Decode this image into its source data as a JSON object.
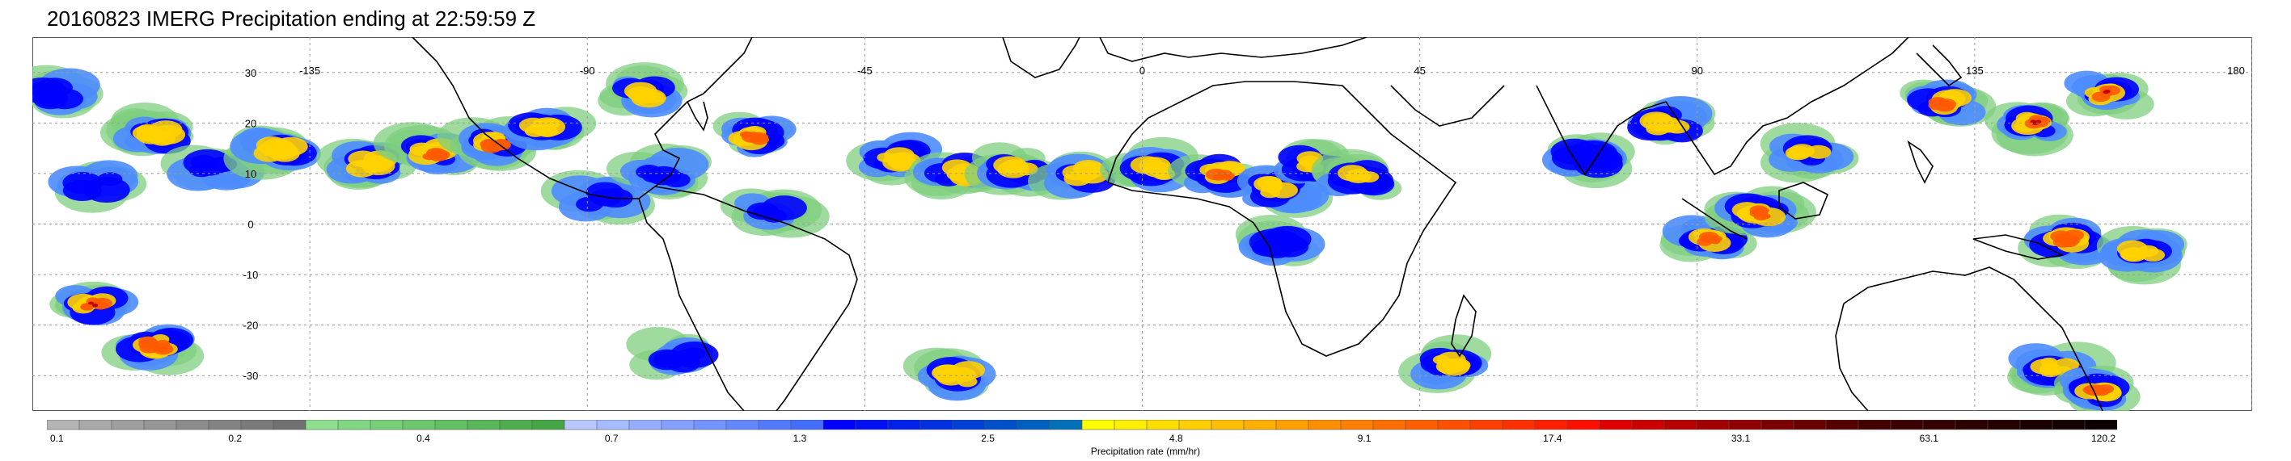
{
  "title": "20160823 IMERG Precipitation ending at 22:59:59 Z",
  "map": {
    "lat_labels": [
      "30",
      "20",
      "10",
      "0",
      "-10",
      "-20",
      "-30"
    ],
    "lon_labels": [
      "-135",
      "-90",
      "-45",
      "0",
      "45",
      "90",
      "135",
      "180"
    ],
    "lat_values": [
      30,
      20,
      10,
      0,
      -10,
      -20,
      -30
    ],
    "lon_values": [
      -135,
      -90,
      -45,
      0,
      45,
      90,
      135,
      180
    ],
    "lat_range": [
      -37,
      37
    ],
    "lon_range": [
      -180,
      180
    ],
    "grid": true,
    "land_outline_color": "#000000",
    "rain_systems": [
      {
        "lon": -176,
        "lat": 26,
        "intensity": 2
      },
      {
        "lon": -170,
        "lat": 8,
        "intensity": 2
      },
      {
        "lon": -160,
        "lat": 18,
        "intensity": 3
      },
      {
        "lon": -150,
        "lat": 11,
        "intensity": 2
      },
      {
        "lon": -140,
        "lat": 15,
        "intensity": 3
      },
      {
        "lon": -125,
        "lat": 12,
        "intensity": 3
      },
      {
        "lon": -115,
        "lat": 14,
        "intensity": 4
      },
      {
        "lon": -105,
        "lat": 16,
        "intensity": 4
      },
      {
        "lon": -97,
        "lat": 19,
        "intensity": 3
      },
      {
        "lon": -88,
        "lat": 5,
        "intensity": 2
      },
      {
        "lon": -81,
        "lat": 26,
        "intensity": 3
      },
      {
        "lon": -78,
        "lat": 10,
        "intensity": 2
      },
      {
        "lon": -63,
        "lat": 17,
        "intensity": 4
      },
      {
        "lon": -60,
        "lat": 3,
        "intensity": 2
      },
      {
        "lon": -40,
        "lat": 13,
        "intensity": 3
      },
      {
        "lon": -30,
        "lat": 10,
        "intensity": 3
      },
      {
        "lon": -20,
        "lat": 11,
        "intensity": 3
      },
      {
        "lon": -10,
        "lat": 10,
        "intensity": 3
      },
      {
        "lon": 2,
        "lat": 11,
        "intensity": 3
      },
      {
        "lon": 13,
        "lat": 10,
        "intensity": 4
      },
      {
        "lon": 22,
        "lat": 7,
        "intensity": 3
      },
      {
        "lon": 28,
        "lat": 12,
        "intensity": 3
      },
      {
        "lon": 35,
        "lat": 9,
        "intensity": 3
      },
      {
        "lon": 22,
        "lat": -4,
        "intensity": 2
      },
      {
        "lon": 72,
        "lat": 13,
        "intensity": 2
      },
      {
        "lon": 85,
        "lat": 20,
        "intensity": 3
      },
      {
        "lon": 92,
        "lat": -3,
        "intensity": 4
      },
      {
        "lon": 100,
        "lat": 2,
        "intensity": 4
      },
      {
        "lon": 108,
        "lat": 14,
        "intensity": 3
      },
      {
        "lon": 130,
        "lat": 24,
        "intensity": 4
      },
      {
        "lon": 145,
        "lat": 20,
        "intensity": 5
      },
      {
        "lon": 156,
        "lat": 26,
        "intensity": 5
      },
      {
        "lon": 150,
        "lat": -3,
        "intensity": 4
      },
      {
        "lon": 162,
        "lat": -6,
        "intensity": 3
      },
      {
        "lon": -170,
        "lat": -16,
        "intensity": 5
      },
      {
        "lon": -160,
        "lat": -24,
        "intensity": 4
      },
      {
        "lon": -75,
        "lat": -26,
        "intensity": 2
      },
      {
        "lon": -30,
        "lat": -30,
        "intensity": 3
      },
      {
        "lon": 50,
        "lat": -28,
        "intensity": 3
      },
      {
        "lon": 148,
        "lat": -28,
        "intensity": 3
      },
      {
        "lon": 155,
        "lat": -33,
        "intensity": 4
      }
    ]
  },
  "colorbar": {
    "title": "Precipitation rate (mm/hr)",
    "tick_labels": [
      "0.1",
      "0.2",
      "0.4",
      "0.7",
      "1.3",
      "2.5",
      "4.8",
      "9.1",
      "17.4",
      "33.1",
      "63.1",
      "120.2"
    ],
    "colors": [
      "#b4b4b4",
      "#a9a9a9",
      "#9f9f9f",
      "#969696",
      "#8c8c8c",
      "#838383",
      "#7a7a7a",
      "#717171",
      "#8ee08e",
      "#82d882",
      "#77d077",
      "#6cc76c",
      "#62bf62",
      "#58b758",
      "#4eae4e",
      "#45a645",
      "#b9c8ff",
      "#a7bbff",
      "#95aeff",
      "#84a1ff",
      "#7394ff",
      "#6287ff",
      "#527aff",
      "#426dff",
      "#0000ff",
      "#0010f5",
      "#0020eb",
      "#0030e0",
      "#0040d6",
      "#0050cc",
      "#0060c2",
      "#0070b8",
      "#ffff00",
      "#ffef00",
      "#ffdf00",
      "#ffcf00",
      "#ffbf00",
      "#ffaf00",
      "#ff9f00",
      "#ff8f00",
      "#ff7f00",
      "#ff6f00",
      "#ff5f00",
      "#ff4f00",
      "#ff3f00",
      "#ff2f00",
      "#ff1f00",
      "#ff0f00",
      "#e00000",
      "#cc0000",
      "#b80000",
      "#a40000",
      "#900000",
      "#7c0000",
      "#680000",
      "#540000",
      "#440000",
      "#3c0000",
      "#340000",
      "#2c0000",
      "#240000",
      "#1c0000",
      "#140000",
      "#0c0000"
    ]
  }
}
